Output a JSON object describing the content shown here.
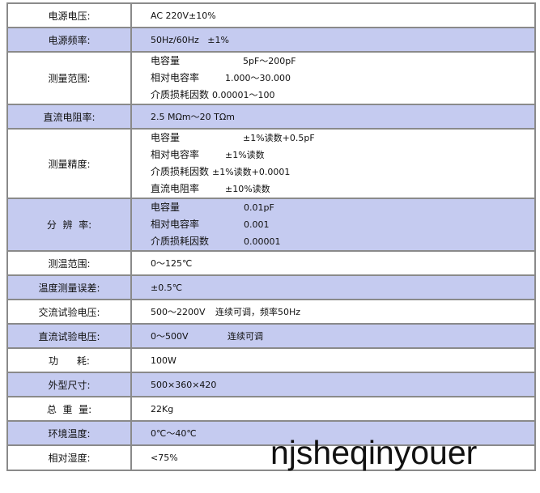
{
  "rows": [
    {
      "label": "电源电压:",
      "lines": [
        [
          "AC 220V±10%",
          ""
        ]
      ],
      "shaded": false
    },
    {
      "label": "电源频率:",
      "lines": [
        [
          "50Hz/60Hz   ±1%",
          ""
        ]
      ],
      "shaded": true
    },
    {
      "label": "测量范围:",
      "lines": [
        [
          "电容量",
          "5pF～200pF"
        ],
        [
          "相对电容率",
          "1.000～30.000"
        ],
        [
          "介质损耗因数",
          "0.00001～100"
        ]
      ],
      "shaded": false
    },
    {
      "label": "直流电阻率:",
      "lines": [
        [
          "2.5 MΩm～20 TΩm",
          ""
        ]
      ],
      "shaded": true
    },
    {
      "label": "测量精度:",
      "lines": [
        [
          "电容量",
          "±1%读数+0.5pF"
        ],
        [
          "相对电容率",
          "±1%读数"
        ],
        [
          "介质损耗因数",
          "±1%读数+0.0001"
        ],
        [
          "直流电阻率",
          "±10%读数"
        ]
      ],
      "shaded": false
    },
    {
      "label": "分  辨  率:",
      "lines": [
        [
          "电容量",
          "0.01pF"
        ],
        [
          "相对电容率",
          "0.001"
        ],
        [
          "介质损耗因数",
          "0.00001"
        ]
      ],
      "shaded": true
    },
    {
      "label": "测温范围:",
      "lines": [
        [
          "0～125℃",
          ""
        ]
      ],
      "shaded": false
    },
    {
      "label": "温度测量误差:",
      "lines": [
        [
          "±0.5℃",
          ""
        ]
      ],
      "shaded": true
    },
    {
      "label": "交流试验电压:",
      "lines": [
        [
          "500～2200V",
          "连续可调，频率50Hz"
        ]
      ],
      "shaded": false
    },
    {
      "label": "直流试验电压:",
      "lines": [
        [
          "0～500V",
          "连续可调"
        ]
      ],
      "shaded": true
    },
    {
      "label": "功      耗:",
      "lines": [
        [
          "100W",
          ""
        ]
      ],
      "shaded": false
    },
    {
      "label": "外型尺寸:",
      "lines": [
        [
          "500×360×420",
          ""
        ]
      ],
      "shaded": true
    },
    {
      "label": "总  重  量:",
      "lines": [
        [
          "22Kg",
          ""
        ]
      ],
      "shaded": false
    },
    {
      "label": "环境温度:",
      "lines": [
        [
          "0℃～40℃",
          ""
        ]
      ],
      "shaded": true
    },
    {
      "label": "相对湿度:",
      "lines": [
        [
          "<75%",
          ""
        ]
      ],
      "shaded": false
    }
  ],
  "watermark": "njsheqinyouer",
  "colors": {
    "shade": "#c5cbf0",
    "border": "#8a8a8a"
  }
}
